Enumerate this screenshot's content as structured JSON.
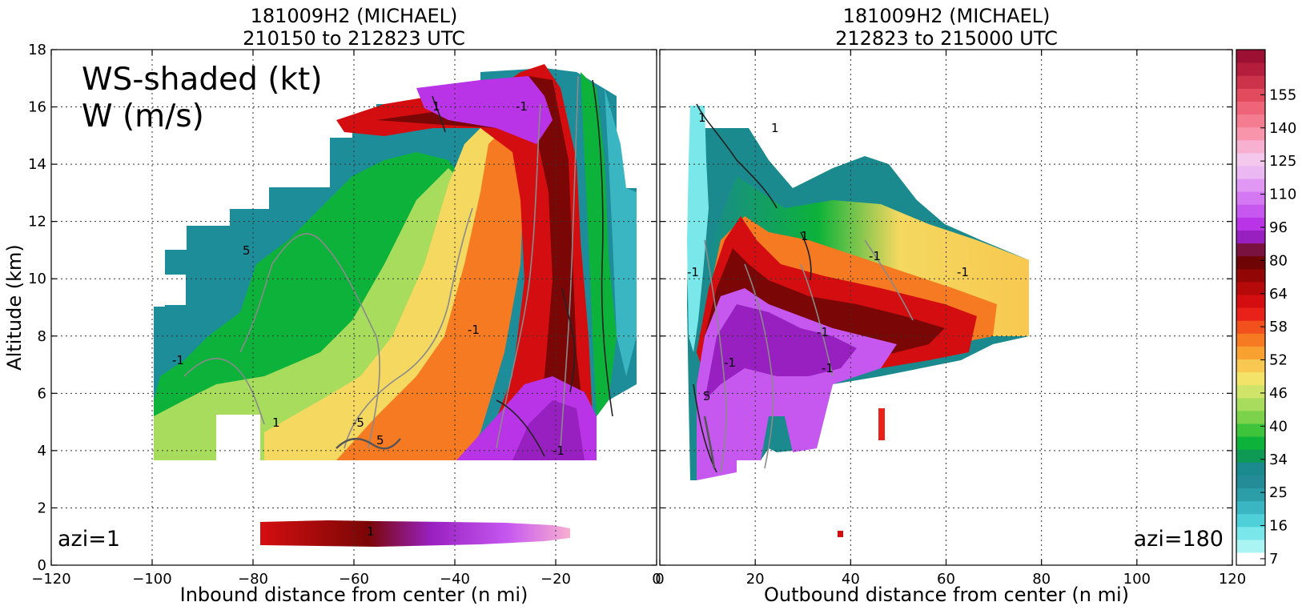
{
  "chart_data": [
    {
      "type": "heatmap",
      "title_line1": "181009H2 (MICHAEL)",
      "title_line2": "210150 to 212823 UTC",
      "xlabel": "Inbound distance from center (n mi)",
      "ylabel": "Altitude (km)",
      "xlim": [
        -120,
        0
      ],
      "ylim": [
        0,
        18
      ],
      "x_ticks": [
        "−120",
        "−100",
        "−80",
        "−60",
        "−40",
        "−20",
        "0"
      ],
      "y_ticks": [
        "0",
        "2",
        "4",
        "6",
        "8",
        "10",
        "12",
        "14",
        "16",
        "18"
      ],
      "grid": true,
      "annotation_line1": "WS-shaded (kt)",
      "annotation_line2": "W (m/s)",
      "azimuth_label": "azi=1",
      "contour_labels": [
        "1",
        "-1",
        "5",
        "-5",
        "-1",
        "1",
        "-1",
        "5",
        "1",
        "-1"
      ]
    },
    {
      "type": "heatmap",
      "title_line1": "181009H2 (MICHAEL)",
      "title_line2": "212823 to 215000 UTC",
      "xlabel": "Outbound distance from center (n mi)",
      "xlim": [
        0,
        120
      ],
      "ylim": [
        0,
        18
      ],
      "x_ticks": [
        "0",
        "20",
        "40",
        "60",
        "80",
        "100",
        "120"
      ],
      "grid": true,
      "azimuth_label": "azi=180",
      "contour_labels": [
        "1",
        "-1",
        "1",
        "-1",
        "-1",
        "-1",
        "1",
        "-1",
        "-1",
        "5"
      ]
    }
  ],
  "colorbar": {
    "tick_labels": [
      "7",
      "16",
      "25",
      "34",
      "40",
      "46",
      "52",
      "58",
      "64",
      "80",
      "96",
      "110",
      "125",
      "140",
      "155"
    ],
    "colors": [
      "#ffffff",
      "#aaf4f4",
      "#7ae8ea",
      "#4fd0d8",
      "#3ab5c2",
      "#2b9ea8",
      "#248c96",
      "#1a8a8e",
      "#0e9a55",
      "#0cb23a",
      "#3ec43a",
      "#7cd24a",
      "#a8dc5c",
      "#cfe468",
      "#f3e368",
      "#f8c850",
      "#f8a030",
      "#f57a22",
      "#f2501c",
      "#e82218",
      "#d40e10",
      "#b60a0a",
      "#920606",
      "#6e0404",
      "#7a1240",
      "#9820c0",
      "#b834e6",
      "#c658f0",
      "#d478f4",
      "#e098f4",
      "#ecb8f4",
      "#f4c8ec",
      "#f8b0d0",
      "#f894ac",
      "#f47c90",
      "#ee6478",
      "#e24a5e",
      "#cc324a",
      "#b41e3c",
      "#9c1034"
    ]
  }
}
